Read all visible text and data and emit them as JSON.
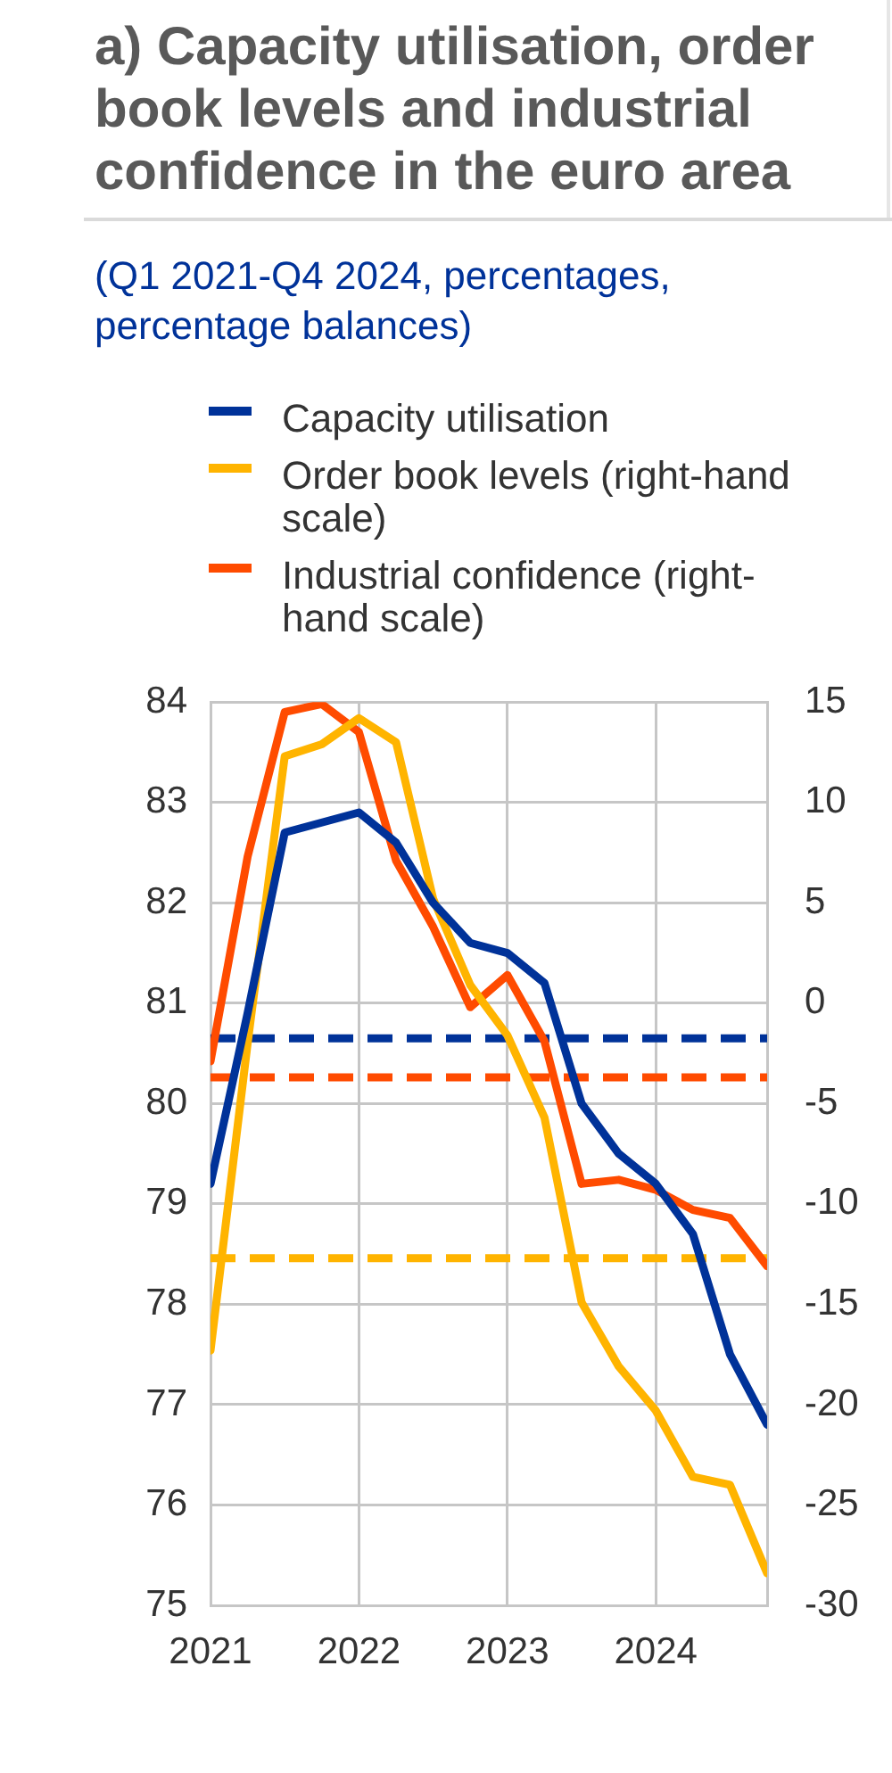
{
  "chart_data": {
    "type": "line",
    "title": "a) Capacity utilisation, order book levels and industrial confidence in the euro area",
    "subtitle": "(Q1 2021-Q4 2024, percentages, percentage balances)",
    "x": [
      2021,
      2021.25,
      2021.5,
      2021.75,
      2022,
      2022.25,
      2022.5,
      2022.75,
      2023,
      2023.25,
      2023.5,
      2023.75,
      2024,
      2024.25,
      2024.5,
      2024.75
    ],
    "xlim": [
      2021,
      2024.75
    ],
    "xticks": [
      2021,
      2022,
      2023,
      2024
    ],
    "ylim": [
      75,
      84
    ],
    "yticks": [
      75,
      76,
      77,
      78,
      79,
      80,
      81,
      82,
      83,
      84
    ],
    "y2lim": [
      -30,
      15
    ],
    "y2ticks": [
      -30,
      -25,
      -20,
      -15,
      -10,
      -5,
      0,
      5,
      10,
      15
    ],
    "series": [
      {
        "name": "Capacity utilisation",
        "color": "#003299",
        "values": [
          79.2,
          80.9,
          82.7,
          82.8,
          82.9,
          82.6,
          82.0,
          81.6,
          81.5,
          81.2,
          80.0,
          79.5,
          79.2,
          78.7,
          77.5,
          76.8
        ]
      },
      {
        "name": "Order book levels (right-hand scale)",
        "color": "#ffb400",
        "axis": "y2",
        "values": [
          -17.3,
          -2.0,
          12.3,
          12.9,
          14.2,
          13.0,
          5.2,
          0.9,
          -1.6,
          -5.7,
          -14.9,
          -18.1,
          -20.3,
          -23.6,
          -24.0,
          -28.4
        ]
      },
      {
        "name": "Industrial confidence (right-hand scale)",
        "color": "#ff4b00",
        "axis": "y2",
        "values": [
          -2.9,
          7.3,
          14.5,
          14.9,
          13.5,
          7.1,
          3.8,
          -0.2,
          1.4,
          -1.9,
          -9.0,
          -8.8,
          -9.3,
          -10.3,
          -10.7,
          -13.1
        ]
      }
    ],
    "ref_lines": [
      {
        "axis": "y",
        "value": 80.65,
        "color": "#003299",
        "line_style": "dashed"
      },
      {
        "axis": "y2",
        "value": -3.7,
        "color": "#ff4b00",
        "line_style": "dashed"
      },
      {
        "axis": "y2",
        "value": -12.7,
        "color": "#ffb400",
        "line_style": "dashed"
      }
    ],
    "grid": true,
    "legend": "top",
    "marker": "none",
    "line_style": "solid"
  }
}
